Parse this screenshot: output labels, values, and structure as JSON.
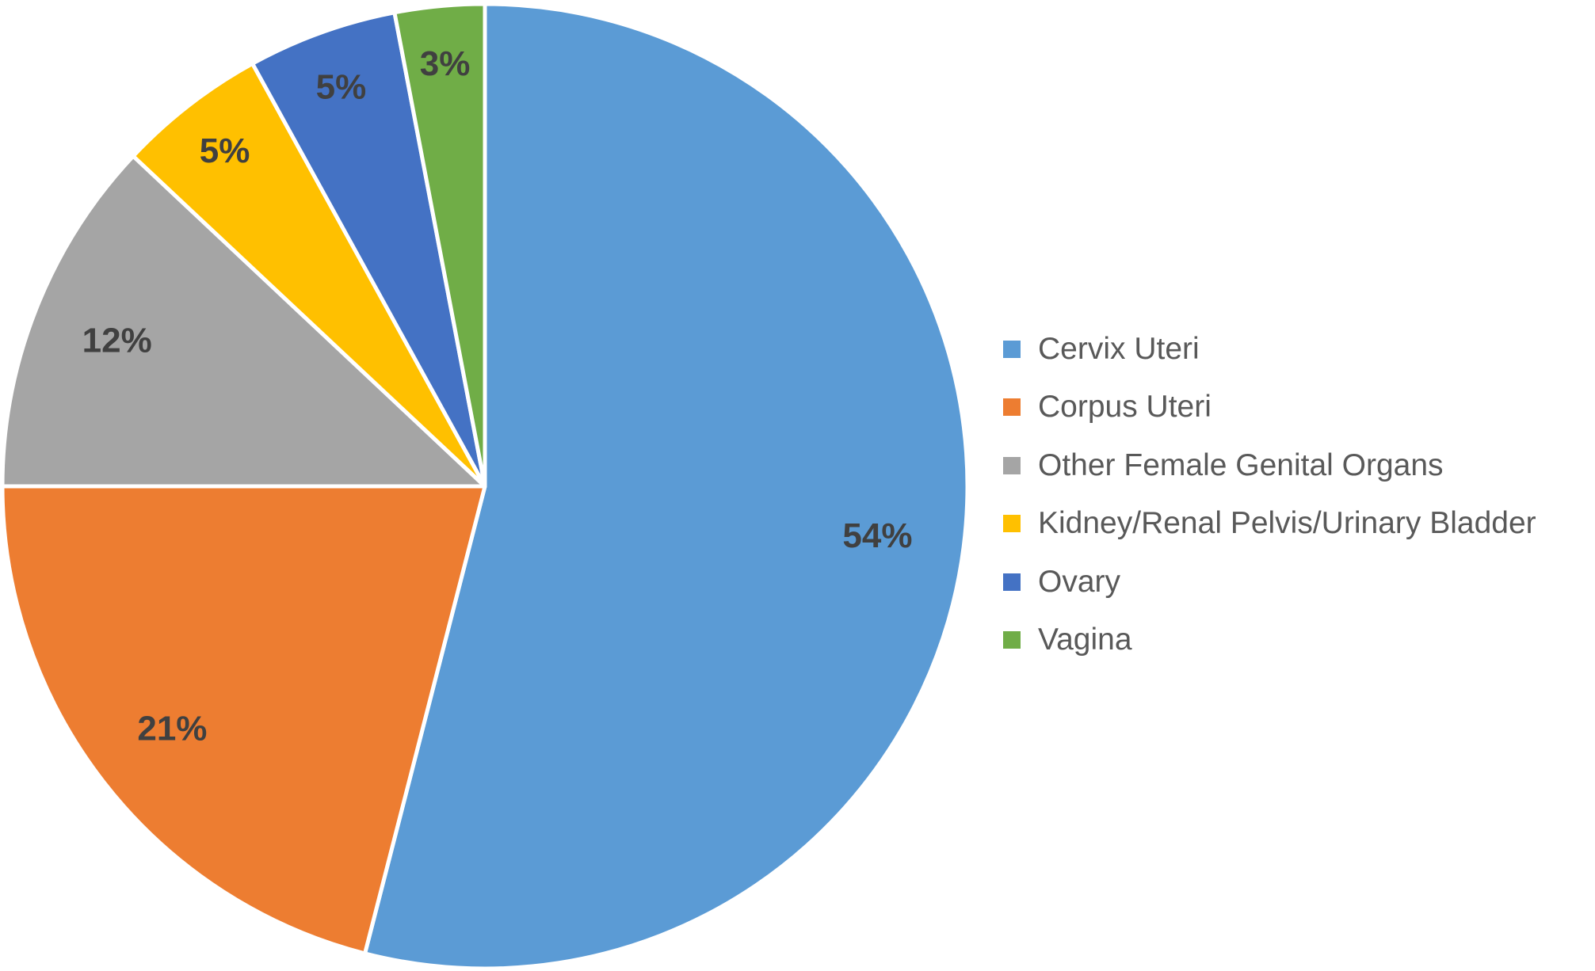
{
  "chart_data": {
    "type": "pie",
    "title": "",
    "start_angle_deg": 0,
    "direction": "clockwise",
    "legend_position": "right",
    "categories": [
      "Cervix Uteri",
      "Corpus Uteri",
      "Other Female Genital Organs",
      "Kidney/Renal Pelvis/Urinary Bladder",
      "Ovary",
      "Vagina"
    ],
    "values": [
      54,
      21,
      12,
      5,
      5,
      3
    ],
    "data_labels": [
      "54%",
      "21%",
      "12%",
      "5%",
      "5%",
      "3%"
    ],
    "colors": [
      "#5B9BD5",
      "#ED7D31",
      "#A5A5A5",
      "#FFC000",
      "#4472C4",
      "#70AD47"
    ]
  }
}
